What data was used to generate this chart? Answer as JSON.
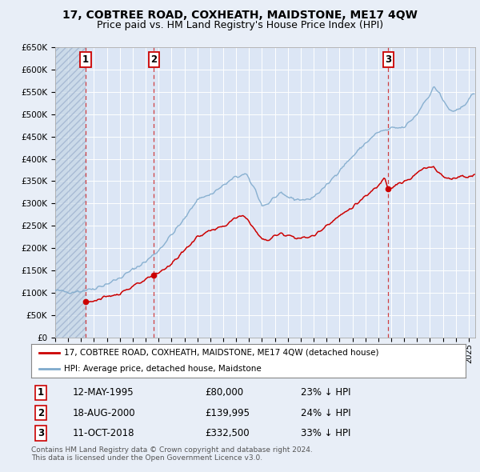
{
  "title": "17, COBTREE ROAD, COXHEATH, MAIDSTONE, ME17 4QW",
  "subtitle": "Price paid vs. HM Land Registry's House Price Index (HPI)",
  "ylim": [
    0,
    650000
  ],
  "yticks": [
    0,
    50000,
    100000,
    150000,
    200000,
    250000,
    300000,
    350000,
    400000,
    450000,
    500000,
    550000,
    600000,
    650000
  ],
  "ytick_labels": [
    "£0",
    "£50K",
    "£100K",
    "£150K",
    "£200K",
    "£250K",
    "£300K",
    "£350K",
    "£400K",
    "£450K",
    "£500K",
    "£550K",
    "£600K",
    "£650K"
  ],
  "xlim_start": 1993.0,
  "xlim_end": 2025.5,
  "background_color": "#e8eef7",
  "plot_bg_color": "#dce6f5",
  "red_line_color": "#cc0000",
  "blue_line_color": "#7faacc",
  "transactions": [
    {
      "date_num": 1995.36,
      "price": 80000,
      "label": "1"
    },
    {
      "date_num": 2000.63,
      "price": 139995,
      "label": "2"
    },
    {
      "date_num": 2018.78,
      "price": 332500,
      "label": "3"
    }
  ],
  "legend_entries": [
    "17, COBTREE ROAD, COXHEATH, MAIDSTONE, ME17 4QW (detached house)",
    "HPI: Average price, detached house, Maidstone"
  ],
  "transaction_table": [
    {
      "num": "1",
      "date": "12-MAY-1995",
      "price": "£80,000",
      "note": "23% ↓ HPI"
    },
    {
      "num": "2",
      "date": "18-AUG-2000",
      "price": "£139,995",
      "note": "24% ↓ HPI"
    },
    {
      "num": "3",
      "date": "11-OCT-2018",
      "price": "£332,500",
      "note": "33% ↓ HPI"
    }
  ],
  "footer": "Contains HM Land Registry data © Crown copyright and database right 2024.\nThis data is licensed under the Open Government Licence v3.0.",
  "hatch_end_year": 1995.36,
  "title_fontsize": 10,
  "subtitle_fontsize": 9
}
